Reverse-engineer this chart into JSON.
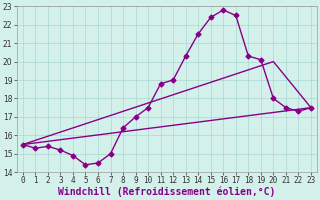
{
  "xlabel": "Windchill (Refroidissement éolien,°C)",
  "bg_color": "#d4f0eb",
  "grid_color": "#a8d8d0",
  "line_color": "#880088",
  "xlim": [
    -0.5,
    23.5
  ],
  "ylim": [
    14,
    23
  ],
  "xticks": [
    0,
    1,
    2,
    3,
    4,
    5,
    6,
    7,
    8,
    9,
    10,
    11,
    12,
    13,
    14,
    15,
    16,
    17,
    18,
    19,
    20,
    21,
    22,
    23
  ],
  "yticks": [
    14,
    15,
    16,
    17,
    18,
    19,
    20,
    21,
    22,
    23
  ],
  "curve1_x": [
    0,
    1,
    2,
    3,
    4,
    5,
    6,
    7,
    8,
    9,
    10,
    11,
    12,
    13,
    14,
    15,
    16,
    17,
    18,
    19,
    20,
    21,
    22,
    23
  ],
  "curve1_y": [
    15.5,
    15.3,
    15.4,
    15.2,
    14.9,
    14.4,
    14.5,
    15.0,
    16.4,
    17.0,
    17.5,
    18.8,
    19.0,
    20.3,
    21.5,
    22.4,
    22.8,
    22.5,
    20.3,
    20.1,
    18.0,
    17.5,
    17.3,
    17.5
  ],
  "line1_x": [
    0,
    23
  ],
  "line1_y": [
    15.5,
    17.5
  ],
  "line2_x": [
    0,
    20,
    23
  ],
  "line2_y": [
    15.5,
    20.0,
    17.5
  ],
  "marker": "D",
  "markersize": 2.5,
  "linewidth": 1.0,
  "xlabel_fontsize": 7,
  "tick_fontsize": 5.5
}
